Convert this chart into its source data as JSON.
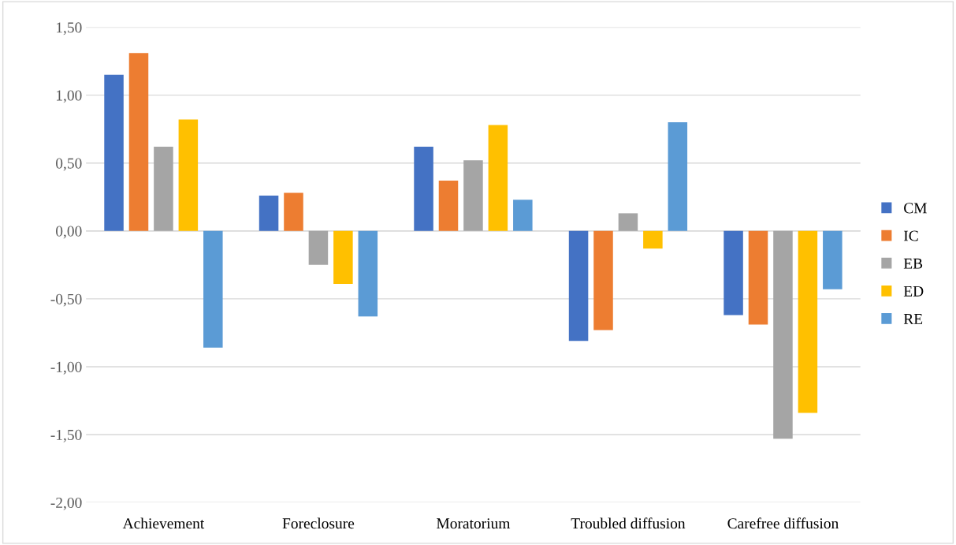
{
  "chart_data": {
    "type": "bar",
    "categories": [
      "Achievement",
      "Foreclosure",
      "Moratorium",
      "Troubled diffusion",
      "Carefree diffusion"
    ],
    "series": [
      {
        "name": "CM",
        "color": "#4472c4",
        "values": [
          1.15,
          0.26,
          0.62,
          -0.81,
          -0.62
        ]
      },
      {
        "name": "IC",
        "color": "#ed7d31",
        "values": [
          1.31,
          0.28,
          0.37,
          -0.73,
          -0.69
        ]
      },
      {
        "name": "EB",
        "color": "#a5a5a5",
        "values": [
          0.62,
          -0.25,
          0.52,
          0.13,
          -1.53
        ]
      },
      {
        "name": "ED",
        "color": "#ffc000",
        "values": [
          0.82,
          -0.39,
          0.78,
          -0.13,
          -1.34
        ]
      },
      {
        "name": "RE",
        "color": "#5b9bd5",
        "values": [
          -0.86,
          -0.63,
          0.23,
          0.8,
          -0.43
        ]
      }
    ],
    "ylim": [
      -2.0,
      1.5
    ],
    "yticks": [
      {
        "value": -2.0,
        "label": "-2,00"
      },
      {
        "value": -1.5,
        "label": "-1,50"
      },
      {
        "value": -1.0,
        "label": "-1,00"
      },
      {
        "value": -0.5,
        "label": "-0,50"
      },
      {
        "value": 0.0,
        "label": "0,00"
      },
      {
        "value": 0.5,
        "label": "0,50"
      },
      {
        "value": 1.0,
        "label": "1,00"
      },
      {
        "value": 1.5,
        "label": "1,50"
      }
    ],
    "grid": "y",
    "legend": "right"
  }
}
